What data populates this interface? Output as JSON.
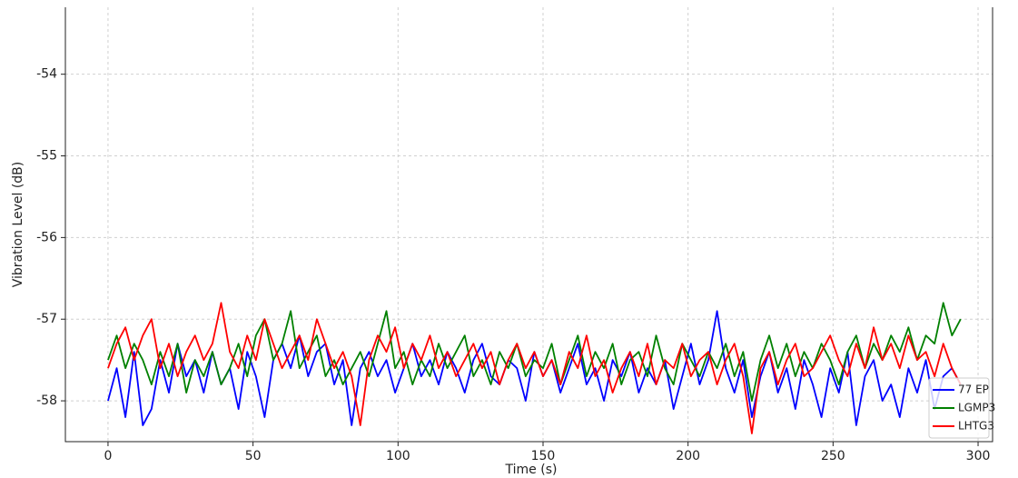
{
  "chart_data": {
    "type": "line",
    "x_label": "Time (s)",
    "y_label": "Vibration Level (dB)",
    "x": [
      0,
      3,
      6,
      9,
      12,
      15,
      18,
      21,
      24,
      27,
      30,
      33,
      36,
      39,
      42,
      45,
      48,
      51,
      54,
      57,
      60,
      63,
      66,
      69,
      72,
      75,
      78,
      81,
      84,
      87,
      90,
      93,
      96,
      99,
      102,
      105,
      108,
      111,
      114,
      117,
      120,
      123,
      126,
      129,
      132,
      135,
      138,
      141,
      144,
      147,
      150,
      153,
      156,
      159,
      162,
      165,
      168,
      171,
      174,
      177,
      180,
      183,
      186,
      189,
      192,
      195,
      198,
      201,
      204,
      207,
      210,
      213,
      216,
      219,
      222,
      225,
      228,
      231,
      234,
      237,
      240,
      243,
      246,
      249,
      252,
      255,
      258,
      261,
      264,
      267,
      270,
      273,
      276,
      279,
      282,
      285,
      288,
      291,
      294
    ],
    "series": [
      {
        "name": "77 EP",
        "color": "#0000ff",
        "values": [
          -58.0,
          -57.6,
          -58.2,
          -57.4,
          -58.3,
          -58.1,
          -57.5,
          -57.9,
          -57.3,
          -57.7,
          -57.5,
          -57.9,
          -57.4,
          -57.8,
          -57.6,
          -58.1,
          -57.4,
          -57.7,
          -58.2,
          -57.5,
          -57.3,
          -57.6,
          -57.2,
          -57.7,
          -57.4,
          -57.3,
          -57.8,
          -57.5,
          -58.3,
          -57.6,
          -57.4,
          -57.7,
          -57.5,
          -57.9,
          -57.6,
          -57.3,
          -57.7,
          -57.5,
          -57.8,
          -57.4,
          -57.6,
          -57.9,
          -57.5,
          -57.3,
          -57.7,
          -57.8,
          -57.5,
          -57.6,
          -58.0,
          -57.4,
          -57.7,
          -57.5,
          -57.9,
          -57.6,
          -57.3,
          -57.8,
          -57.6,
          -58.0,
          -57.5,
          -57.7,
          -57.4,
          -57.9,
          -57.6,
          -57.8,
          -57.5,
          -58.1,
          -57.7,
          -57.3,
          -57.8,
          -57.5,
          -56.9,
          -57.6,
          -57.9,
          -57.5,
          -58.2,
          -57.7,
          -57.4,
          -57.9,
          -57.6,
          -58.1,
          -57.5,
          -57.8,
          -58.2,
          -57.6,
          -57.9,
          -57.4,
          -58.3,
          -57.7,
          -57.5,
          -58.0,
          -57.8,
          -58.2,
          -57.6,
          -57.9,
          -57.5,
          -58.1,
          -57.7,
          -57.6,
          -57.8
        ]
      },
      {
        "name": "LGMP3",
        "color": "#008000",
        "values": [
          -57.5,
          -57.2,
          -57.6,
          -57.3,
          -57.5,
          -57.8,
          -57.4,
          -57.7,
          -57.3,
          -57.9,
          -57.5,
          -57.7,
          -57.4,
          -57.8,
          -57.6,
          -57.3,
          -57.7,
          -57.2,
          -57.0,
          -57.5,
          -57.3,
          -56.9,
          -57.6,
          -57.4,
          -57.2,
          -57.7,
          -57.5,
          -57.8,
          -57.6,
          -57.4,
          -57.7,
          -57.3,
          -56.9,
          -57.6,
          -57.4,
          -57.8,
          -57.5,
          -57.7,
          -57.3,
          -57.6,
          -57.4,
          -57.2,
          -57.7,
          -57.5,
          -57.8,
          -57.4,
          -57.6,
          -57.3,
          -57.7,
          -57.5,
          -57.6,
          -57.3,
          -57.8,
          -57.5,
          -57.2,
          -57.7,
          -57.4,
          -57.6,
          -57.3,
          -57.8,
          -57.5,
          -57.4,
          -57.7,
          -57.2,
          -57.6,
          -57.8,
          -57.3,
          -57.5,
          -57.7,
          -57.4,
          -57.6,
          -57.3,
          -57.7,
          -57.4,
          -58.0,
          -57.5,
          -57.2,
          -57.6,
          -57.3,
          -57.7,
          -57.4,
          -57.6,
          -57.3,
          -57.5,
          -57.8,
          -57.4,
          -57.2,
          -57.6,
          -57.3,
          -57.5,
          -57.2,
          -57.4,
          -57.1,
          -57.5,
          -57.2,
          -57.3,
          -56.8,
          -57.2,
          -57.0
        ]
      },
      {
        "name": "LHTG3",
        "color": "#ff0000",
        "values": [
          -57.6,
          -57.3,
          -57.1,
          -57.5,
          -57.2,
          -57.0,
          -57.6,
          -57.3,
          -57.7,
          -57.4,
          -57.2,
          -57.5,
          -57.3,
          -56.8,
          -57.4,
          -57.6,
          -57.2,
          -57.5,
          -57.0,
          -57.3,
          -57.6,
          -57.4,
          -57.2,
          -57.5,
          -57.0,
          -57.3,
          -57.6,
          -57.4,
          -57.7,
          -58.3,
          -57.5,
          -57.2,
          -57.4,
          -57.1,
          -57.6,
          -57.3,
          -57.5,
          -57.2,
          -57.6,
          -57.4,
          -57.7,
          -57.5,
          -57.3,
          -57.6,
          -57.4,
          -57.8,
          -57.5,
          -57.3,
          -57.6,
          -57.4,
          -57.7,
          -57.5,
          -57.8,
          -57.4,
          -57.6,
          -57.2,
          -57.7,
          -57.5,
          -57.9,
          -57.6,
          -57.4,
          -57.7,
          -57.3,
          -57.8,
          -57.5,
          -57.6,
          -57.3,
          -57.7,
          -57.5,
          -57.4,
          -57.8,
          -57.5,
          -57.3,
          -57.7,
          -58.4,
          -57.6,
          -57.4,
          -57.8,
          -57.5,
          -57.3,
          -57.7,
          -57.6,
          -57.4,
          -57.2,
          -57.5,
          -57.7,
          -57.3,
          -57.6,
          -57.1,
          -57.5,
          -57.3,
          -57.6,
          -57.2,
          -57.5,
          -57.4,
          -57.7,
          -57.3,
          -57.6,
          -57.8
        ]
      }
    ],
    "xlim": [
      -14.7,
      305
    ],
    "xticks": [
      0,
      50,
      100,
      150,
      200,
      250,
      300
    ],
    "ylim": [
      -58.5,
      -53.18
    ],
    "yticks": [
      -58,
      -57,
      -56,
      -55,
      -54
    ],
    "grid": true,
    "legend": "lower right"
  }
}
